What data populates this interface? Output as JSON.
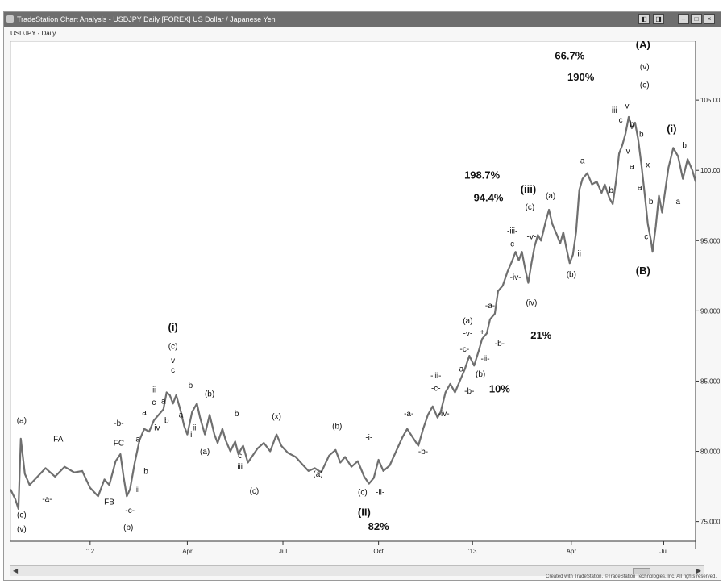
{
  "window": {
    "title": "TradeStation Chart Analysis - USDJPY Daily [FOREX] US Dollar / Japanese Yen",
    "chart_label": "USDJPY - Daily",
    "credit": "Created with TradeStation. ©TradeStation Technologies, Inc. All rights reserved."
  },
  "chart_data": {
    "type": "line",
    "title": "USDJPY - Daily",
    "x_ticks": [
      "'12",
      "Apr",
      "Jul",
      "Oct",
      "'13",
      "Apr",
      "Jul"
    ],
    "y_ticks": [
      "105.000",
      "100.000",
      "95.000",
      "90.000",
      "85.000",
      "80.000",
      "75.000"
    ],
    "ylim": [
      73.6,
      109.2
    ],
    "series_color": "#6f6f6f",
    "grid": false,
    "series": [
      {
        "values": [
          [
            0,
            77.3
          ],
          [
            6,
            76.6
          ],
          [
            10,
            75.9
          ],
          [
            13,
            80.9
          ],
          [
            18,
            78.4
          ],
          [
            24,
            77.6
          ],
          [
            34,
            78.2
          ],
          [
            44,
            78.8
          ],
          [
            56,
            78.2
          ],
          [
            68,
            78.9
          ],
          [
            80,
            78.5
          ],
          [
            90,
            78.6
          ],
          [
            100,
            77.4
          ],
          [
            110,
            76.8
          ],
          [
            118,
            78.0
          ],
          [
            124,
            77.6
          ],
          [
            132,
            79.3
          ],
          [
            138,
            79.8
          ],
          [
            142,
            78.2
          ],
          [
            146,
            76.8
          ],
          [
            150,
            77.3
          ],
          [
            156,
            79.2
          ],
          [
            162,
            80.8
          ],
          [
            168,
            81.6
          ],
          [
            174,
            81.4
          ],
          [
            180,
            82.2
          ],
          [
            186,
            82.6
          ],
          [
            192,
            83.0
          ],
          [
            196,
            84.2
          ],
          [
            200,
            84.0
          ],
          [
            204,
            83.4
          ],
          [
            208,
            84.0
          ],
          [
            214,
            82.8
          ],
          [
            218,
            81.8
          ],
          [
            222,
            81.2
          ],
          [
            228,
            82.8
          ],
          [
            234,
            83.4
          ],
          [
            238,
            82.4
          ],
          [
            244,
            81.2
          ],
          [
            250,
            82.6
          ],
          [
            256,
            81.2
          ],
          [
            260,
            80.6
          ],
          [
            266,
            81.6
          ],
          [
            270,
            80.8
          ],
          [
            276,
            80.0
          ],
          [
            282,
            80.7
          ],
          [
            286,
            79.8
          ],
          [
            292,
            80.4
          ],
          [
            298,
            79.2
          ],
          [
            304,
            79.7
          ],
          [
            310,
            80.2
          ],
          [
            318,
            80.6
          ],
          [
            326,
            80.0
          ],
          [
            334,
            81.2
          ],
          [
            340,
            80.4
          ],
          [
            348,
            79.9
          ],
          [
            358,
            79.6
          ],
          [
            366,
            79.1
          ],
          [
            374,
            78.6
          ],
          [
            382,
            78.8
          ],
          [
            390,
            78.5
          ],
          [
            400,
            79.7
          ],
          [
            408,
            80.1
          ],
          [
            414,
            79.2
          ],
          [
            420,
            79.6
          ],
          [
            428,
            78.9
          ],
          [
            436,
            79.3
          ],
          [
            444,
            78.2
          ],
          [
            450,
            77.7
          ],
          [
            456,
            78.1
          ],
          [
            462,
            79.4
          ],
          [
            468,
            78.6
          ],
          [
            476,
            79.0
          ],
          [
            484,
            80.0
          ],
          [
            492,
            81.0
          ],
          [
            498,
            81.6
          ],
          [
            506,
            80.9
          ],
          [
            512,
            80.4
          ],
          [
            518,
            81.6
          ],
          [
            524,
            82.6
          ],
          [
            530,
            83.2
          ],
          [
            536,
            82.4
          ],
          [
            540,
            82.8
          ],
          [
            546,
            84.2
          ],
          [
            552,
            84.8
          ],
          [
            558,
            84.2
          ],
          [
            564,
            85.0
          ],
          [
            570,
            85.8
          ],
          [
            576,
            86.8
          ],
          [
            582,
            86.1
          ],
          [
            588,
            87.2
          ],
          [
            592,
            88.0
          ],
          [
            598,
            88.4
          ],
          [
            602,
            89.4
          ],
          [
            608,
            89.8
          ],
          [
            612,
            91.4
          ],
          [
            618,
            91.8
          ],
          [
            624,
            92.8
          ],
          [
            630,
            93.6
          ],
          [
            634,
            94.2
          ],
          [
            638,
            93.6
          ],
          [
            642,
            94.2
          ],
          [
            646,
            93.0
          ],
          [
            650,
            92.0
          ],
          [
            654,
            93.4
          ],
          [
            658,
            94.6
          ],
          [
            662,
            95.4
          ],
          [
            666,
            95.0
          ],
          [
            672,
            96.4
          ],
          [
            676,
            97.2
          ],
          [
            680,
            96.2
          ],
          [
            686,
            95.4
          ],
          [
            690,
            94.8
          ],
          [
            694,
            95.6
          ],
          [
            698,
            94.4
          ],
          [
            702,
            93.4
          ],
          [
            706,
            94.0
          ],
          [
            710,
            95.6
          ],
          [
            714,
            98.6
          ],
          [
            718,
            99.4
          ],
          [
            724,
            99.8
          ],
          [
            730,
            99.0
          ],
          [
            736,
            99.2
          ],
          [
            742,
            98.4
          ],
          [
            746,
            99.0
          ],
          [
            752,
            98.0
          ],
          [
            756,
            97.6
          ],
          [
            760,
            99.2
          ],
          [
            764,
            101.2
          ],
          [
            768,
            101.8
          ],
          [
            772,
            102.6
          ],
          [
            776,
            103.8
          ],
          [
            780,
            103.0
          ],
          [
            784,
            103.4
          ],
          [
            788,
            102.2
          ],
          [
            792,
            100.4
          ],
          [
            796,
            98.4
          ],
          [
            800,
            96.2
          ],
          [
            804,
            95.0
          ],
          [
            806,
            94.2
          ],
          [
            810,
            96.0
          ],
          [
            814,
            98.2
          ],
          [
            818,
            97.0
          ],
          [
            822,
            98.6
          ],
          [
            826,
            100.2
          ],
          [
            832,
            101.6
          ],
          [
            838,
            101.0
          ],
          [
            844,
            99.4
          ],
          [
            850,
            100.8
          ],
          [
            856,
            100.0
          ],
          [
            860,
            99.2
          ]
        ]
      }
    ],
    "annotations": [
      {
        "text": "(a)",
        "x": 14,
        "y": 82.0
      },
      {
        "text": "(c)",
        "x": 14,
        "y": 75.3
      },
      {
        "text": "(v)",
        "x": 14,
        "y": 74.3
      },
      {
        "text": "FA",
        "x": 60,
        "y": 80.7
      },
      {
        "text": "-a-",
        "x": 46,
        "y": 76.4
      },
      {
        "text": "FB",
        "x": 124,
        "y": 76.2
      },
      {
        "text": "FC",
        "x": 136,
        "y": 80.4
      },
      {
        "text": "-b-",
        "x": 136,
        "y": 81.8
      },
      {
        "text": "-c-",
        "x": 150,
        "y": 75.6
      },
      {
        "text": "(b)",
        "x": 148,
        "y": 74.4
      },
      {
        "text": "a",
        "x": 160,
        "y": 80.7
      },
      {
        "text": "b",
        "x": 170,
        "y": 78.4
      },
      {
        "text": "ii",
        "x": 160,
        "y": 77.1
      },
      {
        "text": "a",
        "x": 168,
        "y": 82.6
      },
      {
        "text": "b",
        "x": 196,
        "y": 82.0
      },
      {
        "text": "iv",
        "x": 184,
        "y": 81.5
      },
      {
        "text": "iii",
        "x": 180,
        "y": 84.2
      },
      {
        "text": "c",
        "x": 180,
        "y": 83.3
      },
      {
        "text": "a",
        "x": 192,
        "y": 83.4
      },
      {
        "text": "(i)",
        "x": 204,
        "y": 88.6
      },
      {
        "text": "(c)",
        "x": 204,
        "y": 87.3
      },
      {
        "text": "v",
        "x": 204,
        "y": 86.3
      },
      {
        "text": "c",
        "x": 204,
        "y": 85.6
      },
      {
        "text": "a",
        "x": 214,
        "y": 82.4
      },
      {
        "text": "b",
        "x": 226,
        "y": 84.5
      },
      {
        "text": "ii",
        "x": 228,
        "y": 81.0
      },
      {
        "text": "iii",
        "x": 232,
        "y": 81.5
      },
      {
        "text": "(b)",
        "x": 250,
        "y": 83.9
      },
      {
        "text": "(a)",
        "x": 244,
        "y": 79.8
      },
      {
        "text": "b",
        "x": 284,
        "y": 82.5
      },
      {
        "text": "c",
        "x": 288,
        "y": 79.5
      },
      {
        "text": "iii",
        "x": 288,
        "y": 78.7
      },
      {
        "text": "(c)",
        "x": 306,
        "y": 77.0
      },
      {
        "text": "(x)",
        "x": 334,
        "y": 82.3
      },
      {
        "text": "(a)",
        "x": 386,
        "y": 78.2
      },
      {
        "text": "(b)",
        "x": 410,
        "y": 81.6
      },
      {
        "text": "-i-",
        "x": 450,
        "y": 80.8
      },
      {
        "text": "-ii-",
        "x": 464,
        "y": 76.9
      },
      {
        "text": "(c)",
        "x": 442,
        "y": 76.9
      },
      {
        "text": "(II)",
        "x": 444,
        "y": 75.4
      },
      {
        "text": "82%",
        "x": 462,
        "y": 74.4
      },
      {
        "text": "-a-",
        "x": 500,
        "y": 82.5
      },
      {
        "text": "-b-",
        "x": 518,
        "y": 79.8
      },
      {
        "text": "-iii-",
        "x": 534,
        "y": 85.2
      },
      {
        "text": "-c-",
        "x": 534,
        "y": 84.3
      },
      {
        "text": "-iv-",
        "x": 544,
        "y": 82.5
      },
      {
        "text": "-a-",
        "x": 566,
        "y": 85.7
      },
      {
        "text": "-c-",
        "x": 570,
        "y": 87.1
      },
      {
        "text": "-v-",
        "x": 574,
        "y": 88.2
      },
      {
        "text": "(a)",
        "x": 574,
        "y": 89.1
      },
      {
        "text": "-b-",
        "x": 576,
        "y": 84.1
      },
      {
        "text": "(b)",
        "x": 590,
        "y": 85.3
      },
      {
        "text": "+",
        "x": 592,
        "y": 88.3
      },
      {
        "text": "-ii-",
        "x": 596,
        "y": 86.4
      },
      {
        "text": "-a-",
        "x": 602,
        "y": 90.2
      },
      {
        "text": "-b-",
        "x": 614,
        "y": 87.5
      },
      {
        "text": "10%",
        "x": 614,
        "y": 84.2
      },
      {
        "text": "198.7%",
        "x": 592,
        "y": 99.4
      },
      {
        "text": "94.4%",
        "x": 600,
        "y": 97.8
      },
      {
        "text": "-iii-",
        "x": 630,
        "y": 95.5
      },
      {
        "text": "-c-",
        "x": 630,
        "y": 94.6
      },
      {
        "text": "(iii)",
        "x": 650,
        "y": 98.4
      },
      {
        "text": "(c)",
        "x": 652,
        "y": 97.2
      },
      {
        "text": "-v-",
        "x": 654,
        "y": 95.1
      },
      {
        "text": "-iv-",
        "x": 634,
        "y": 92.2
      },
      {
        "text": "(iv)",
        "x": 654,
        "y": 90.4
      },
      {
        "text": "21%",
        "x": 666,
        "y": 88.0
      },
      {
        "text": "(a)",
        "x": 678,
        "y": 98.0
      },
      {
        "text": "(b)",
        "x": 704,
        "y": 92.4
      },
      {
        "text": "a",
        "x": 718,
        "y": 100.5
      },
      {
        "text": "ii",
        "x": 714,
        "y": 93.9
      },
      {
        "text": "b",
        "x": 754,
        "y": 98.4
      },
      {
        "text": "66.7%",
        "x": 702,
        "y": 107.9
      },
      {
        "text": "190%",
        "x": 716,
        "y": 106.4
      },
      {
        "text": "(A)",
        "x": 794,
        "y": 108.7
      },
      {
        "text": "(v)",
        "x": 796,
        "y": 107.2
      },
      {
        "text": "(c)",
        "x": 796,
        "y": 105.9
      },
      {
        "text": "iii",
        "x": 758,
        "y": 104.1
      },
      {
        "text": "v",
        "x": 774,
        "y": 104.4
      },
      {
        "text": "c",
        "x": 766,
        "y": 103.4
      },
      {
        "text": "b",
        "x": 780,
        "y": 103.1
      },
      {
        "text": "iv",
        "x": 774,
        "y": 101.2
      },
      {
        "text": "a",
        "x": 780,
        "y": 100.1
      },
      {
        "text": "b",
        "x": 792,
        "y": 102.4
      },
      {
        "text": "x",
        "x": 800,
        "y": 100.2
      },
      {
        "text": "a",
        "x": 790,
        "y": 98.6
      },
      {
        "text": "b",
        "x": 804,
        "y": 97.6
      },
      {
        "text": "c",
        "x": 798,
        "y": 95.1
      },
      {
        "text": "(B)",
        "x": 794,
        "y": 92.6
      },
      {
        "text": "(i)",
        "x": 830,
        "y": 102.7
      },
      {
        "text": "b",
        "x": 846,
        "y": 101.6
      },
      {
        "text": "a",
        "x": 838,
        "y": 97.6
      }
    ]
  }
}
